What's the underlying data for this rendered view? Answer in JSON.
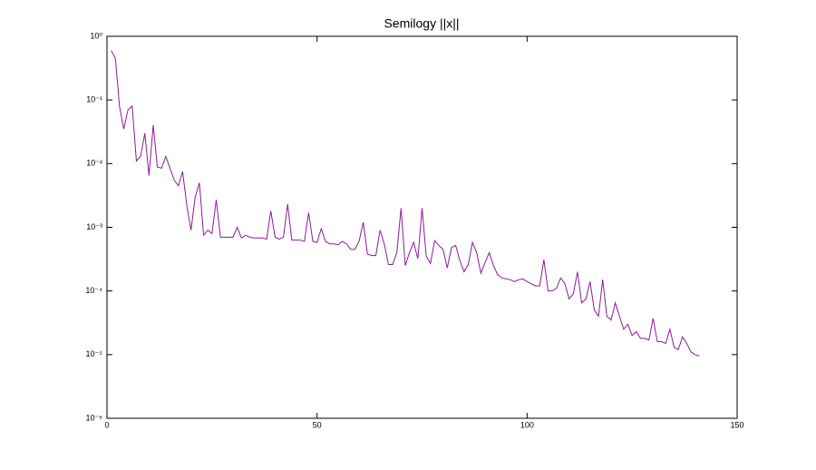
{
  "chart_data": {
    "type": "line",
    "title": "Semilogy ||x||",
    "x": [
      1,
      2,
      3,
      4,
      5,
      6,
      7,
      8,
      9,
      10,
      11,
      12,
      13,
      14,
      15,
      16,
      17,
      18,
      19,
      20,
      21,
      22,
      23,
      24,
      25,
      26,
      27,
      28,
      29,
      30,
      31,
      32,
      33,
      34,
      35,
      36,
      37,
      38,
      39,
      40,
      41,
      42,
      43,
      44,
      45,
      46,
      47,
      48,
      49,
      50,
      51,
      52,
      53,
      54,
      55,
      56,
      57,
      58,
      59,
      60,
      61,
      62,
      63,
      64,
      65,
      66,
      67,
      68,
      69,
      70,
      71,
      72,
      73,
      74,
      75,
      76,
      77,
      78,
      79,
      80,
      81,
      82,
      83,
      84,
      85,
      86,
      87,
      88,
      89,
      90,
      91,
      92,
      93,
      94,
      95,
      96,
      97,
      98,
      99,
      100,
      101,
      102,
      103,
      104,
      105,
      106,
      107,
      108,
      109,
      110,
      111,
      112,
      113,
      114,
      115,
      116,
      117,
      118,
      119,
      120,
      121,
      122,
      123,
      124,
      125,
      126,
      127,
      128,
      129,
      130,
      131,
      132,
      133,
      134,
      135,
      136,
      137,
      138,
      139,
      140,
      141
    ],
    "values": [
      0.6,
      0.45,
      0.077,
      0.035,
      0.07,
      0.08,
      0.011,
      0.013,
      0.03,
      0.0065,
      0.04,
      0.0088,
      0.0085,
      0.013,
      0.0085,
      0.0055,
      0.0045,
      0.0075,
      0.0022,
      0.0009,
      0.003,
      0.005,
      0.00075,
      0.0009,
      0.0008,
      0.0027,
      0.0007,
      0.0007,
      0.0007,
      0.0007,
      0.001,
      0.00068,
      0.00075,
      0.0007,
      0.00068,
      0.00068,
      0.00068,
      0.00065,
      0.0018,
      0.0007,
      0.00065,
      0.0007,
      0.0023,
      0.00063,
      0.00063,
      0.00063,
      0.0006,
      0.0017,
      0.0006,
      0.00058,
      0.00095,
      0.0006,
      0.00055,
      0.00055,
      0.00053,
      0.0006,
      0.00055,
      0.00045,
      0.00045,
      0.0006,
      0.0012,
      0.00038,
      0.00036,
      0.00036,
      0.0009,
      0.00055,
      0.00026,
      0.00026,
      0.0004,
      0.002,
      0.00025,
      0.0004,
      0.00058,
      0.00032,
      0.002,
      0.00035,
      0.00027,
      0.00062,
      0.00052,
      0.00045,
      0.00023,
      0.00048,
      0.00052,
      0.0003,
      0.0002,
      0.00026,
      0.00058,
      0.0004,
      0.00019,
      0.00028,
      0.0004,
      0.00025,
      0.00018,
      0.00016,
      0.000155,
      0.00015,
      0.00014,
      0.00015,
      0.000155,
      0.00014,
      0.00013,
      0.00012,
      0.00012,
      0.00031,
      0.0001,
      0.0001,
      0.00011,
      0.00016,
      0.00013,
      7.5e-05,
      9e-05,
      0.0002,
      6.5e-05,
      7.5e-05,
      0.00014,
      5e-05,
      4e-05,
      0.00015,
      4e-05,
      3.5e-05,
      6.5e-05,
      4e-05,
      2.5e-05,
      3e-05,
      2e-05,
      2.3e-05,
      1.8e-05,
      1.8e-05,
      1.7e-05,
      3.7e-05,
      1.6e-05,
      1.6e-05,
      1.5e-05,
      2.5e-05,
      1.3e-05,
      1.2e-05,
      1.9e-05,
      1.5e-05,
      1.1e-05,
      1e-05,
      9.5e-06
    ],
    "color": "#8b1a9a",
    "xlim": [
      0,
      150
    ],
    "xticks": [
      0,
      50,
      100,
      150
    ],
    "ylim": [
      1e-06,
      1
    ],
    "log_y": true,
    "grid": false,
    "yticks": [
      {
        "value": 1e-06,
        "label": "10⁻⁶"
      },
      {
        "value": 1e-05,
        "label": "10⁻⁵"
      },
      {
        "value": 0.0001,
        "label": "10⁻⁴"
      },
      {
        "value": 0.001,
        "label": "10⁻³"
      },
      {
        "value": 0.01,
        "label": "10⁻²"
      },
      {
        "value": 0.1,
        "label": "10⁻¹"
      },
      {
        "value": 1,
        "label": "10⁰"
      }
    ]
  }
}
